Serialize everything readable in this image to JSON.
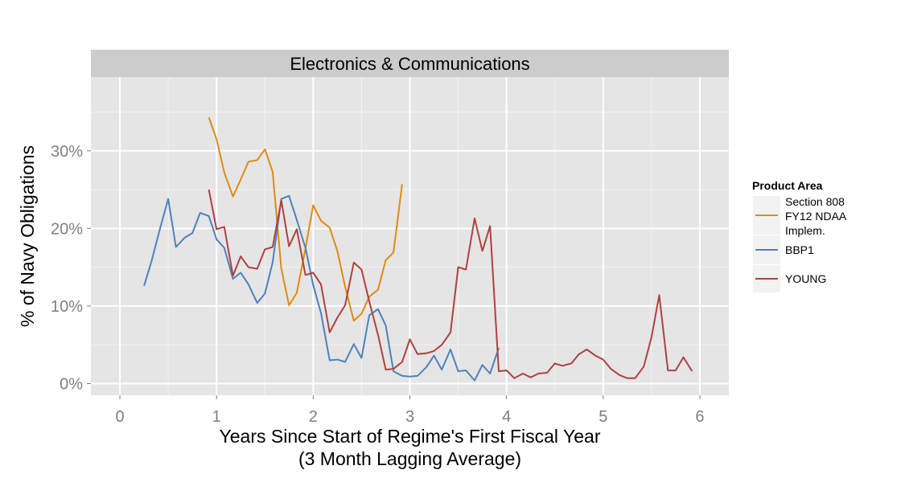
{
  "chart_data": {
    "type": "line",
    "facet_title": "Electronics & Communications",
    "xlabel_line1": "Years Since Start of Regime's First Fiscal Year",
    "xlabel_line2": "(3 Month Lagging Average)",
    "ylabel": "% of Navy Obligations",
    "xlim": [
      -0.3,
      6.3
    ],
    "ylim": [
      -1.5,
      39.5
    ],
    "x_ticks": [
      0,
      1,
      2,
      3,
      4,
      5,
      6
    ],
    "x_tick_labels": [
      "0",
      "1",
      "2",
      "3",
      "4",
      "5",
      "6"
    ],
    "y_ticks": [
      0,
      10,
      20,
      30
    ],
    "y_tick_labels": [
      "0%",
      "10%",
      "20%",
      "30%"
    ],
    "grid": true,
    "legend_position": "right",
    "legend_title": "Product Area",
    "series": [
      {
        "name_lines": [
          "Section 808",
          "FY12 NDAA",
          "Implem."
        ],
        "color": "#e08a14",
        "points": [
          [
            0.92,
            34.3
          ],
          [
            1.0,
            31.5
          ],
          [
            1.08,
            27.2
          ],
          [
            1.17,
            24.1
          ],
          [
            1.25,
            26.3
          ],
          [
            1.33,
            28.6
          ],
          [
            1.42,
            28.8
          ],
          [
            1.5,
            30.2
          ],
          [
            1.58,
            27.3
          ],
          [
            1.67,
            14.8
          ],
          [
            1.75,
            10.1
          ],
          [
            1.83,
            11.7
          ],
          [
            1.92,
            17.4
          ],
          [
            2.0,
            23.0
          ],
          [
            2.08,
            21.0
          ],
          [
            2.17,
            20.1
          ],
          [
            2.25,
            17.1
          ],
          [
            2.33,
            12.5
          ],
          [
            2.42,
            8.1
          ],
          [
            2.5,
            9.0
          ],
          [
            2.58,
            11.2
          ],
          [
            2.67,
            12.1
          ],
          [
            2.75,
            15.9
          ],
          [
            2.83,
            16.9
          ],
          [
            2.92,
            25.7
          ]
        ]
      },
      {
        "name_lines": [
          "BBP1"
        ],
        "color": "#4f81bd",
        "points": [
          [
            0.25,
            12.6
          ],
          [
            0.33,
            15.9
          ],
          [
            0.42,
            20.2
          ],
          [
            0.5,
            23.8
          ],
          [
            0.58,
            17.6
          ],
          [
            0.67,
            18.8
          ],
          [
            0.75,
            19.4
          ],
          [
            0.83,
            22.0
          ],
          [
            0.92,
            21.6
          ],
          [
            1.0,
            18.6
          ],
          [
            1.08,
            17.5
          ],
          [
            1.17,
            13.5
          ],
          [
            1.25,
            14.3
          ],
          [
            1.33,
            12.8
          ],
          [
            1.42,
            10.4
          ],
          [
            1.5,
            11.6
          ],
          [
            1.58,
            15.6
          ],
          [
            1.67,
            23.8
          ],
          [
            1.75,
            24.2
          ],
          [
            1.83,
            21.1
          ],
          [
            1.92,
            17.5
          ],
          [
            2.0,
            12.7
          ],
          [
            2.08,
            9.1
          ],
          [
            2.17,
            3.0
          ],
          [
            2.25,
            3.1
          ],
          [
            2.33,
            2.8
          ],
          [
            2.42,
            5.1
          ],
          [
            2.5,
            3.3
          ],
          [
            2.58,
            8.8
          ],
          [
            2.67,
            9.6
          ],
          [
            2.75,
            7.5
          ],
          [
            2.83,
            1.6
          ],
          [
            2.92,
            1.0
          ],
          [
            3.0,
            0.9
          ],
          [
            3.08,
            1.0
          ],
          [
            3.17,
            2.1
          ],
          [
            3.25,
            3.6
          ],
          [
            3.33,
            1.8
          ],
          [
            3.42,
            4.4
          ],
          [
            3.5,
            1.6
          ],
          [
            3.58,
            1.7
          ],
          [
            3.67,
            0.4
          ],
          [
            3.75,
            2.4
          ],
          [
            3.83,
            1.3
          ],
          [
            3.92,
            4.6
          ]
        ]
      },
      {
        "name_lines": [
          "YOUNG"
        ],
        "color": "#b0413e",
        "points": [
          [
            0.92,
            25.0
          ],
          [
            1.0,
            19.9
          ],
          [
            1.08,
            20.2
          ],
          [
            1.17,
            13.9
          ],
          [
            1.25,
            16.4
          ],
          [
            1.33,
            15.0
          ],
          [
            1.42,
            14.8
          ],
          [
            1.5,
            17.3
          ],
          [
            1.58,
            17.6
          ],
          [
            1.67,
            23.6
          ],
          [
            1.75,
            17.7
          ],
          [
            1.83,
            19.9
          ],
          [
            1.92,
            14.0
          ],
          [
            2.0,
            14.3
          ],
          [
            2.08,
            12.8
          ],
          [
            2.17,
            6.6
          ],
          [
            2.25,
            8.5
          ],
          [
            2.33,
            10.1
          ],
          [
            2.42,
            15.6
          ],
          [
            2.5,
            14.7
          ],
          [
            2.58,
            10.6
          ],
          [
            2.67,
            6.3
          ],
          [
            2.75,
            1.8
          ],
          [
            2.83,
            1.9
          ],
          [
            2.92,
            2.8
          ],
          [
            3.0,
            5.7
          ],
          [
            3.08,
            3.8
          ],
          [
            3.17,
            3.9
          ],
          [
            3.25,
            4.2
          ],
          [
            3.33,
            5.0
          ],
          [
            3.42,
            6.6
          ],
          [
            3.5,
            15.0
          ],
          [
            3.58,
            14.7
          ],
          [
            3.67,
            21.3
          ],
          [
            3.75,
            17.1
          ],
          [
            3.83,
            20.3
          ],
          [
            3.92,
            1.6
          ],
          [
            4.0,
            1.7
          ],
          [
            4.08,
            0.7
          ],
          [
            4.17,
            1.3
          ],
          [
            4.25,
            0.8
          ],
          [
            4.33,
            1.3
          ],
          [
            4.42,
            1.4
          ],
          [
            4.5,
            2.6
          ],
          [
            4.58,
            2.3
          ],
          [
            4.67,
            2.6
          ],
          [
            4.75,
            3.8
          ],
          [
            4.83,
            4.4
          ],
          [
            4.92,
            3.6
          ],
          [
            5.0,
            3.1
          ],
          [
            5.08,
            1.9
          ],
          [
            5.17,
            1.1
          ],
          [
            5.25,
            0.7
          ],
          [
            5.33,
            0.7
          ],
          [
            5.42,
            2.2
          ],
          [
            5.5,
            6.0
          ],
          [
            5.58,
            11.4
          ],
          [
            5.67,
            1.7
          ],
          [
            5.75,
            1.7
          ],
          [
            5.83,
            3.4
          ],
          [
            5.92,
            1.6
          ]
        ]
      }
    ]
  }
}
